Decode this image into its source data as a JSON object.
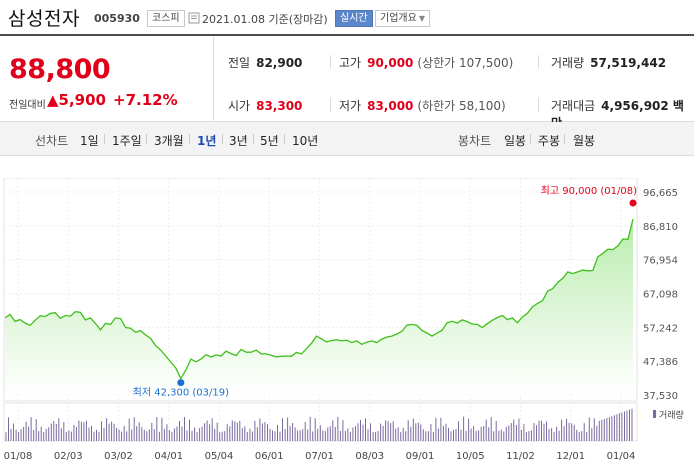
{
  "header": {
    "name": "삼성전자",
    "code": "005930",
    "market": "코스피",
    "date": "2021.01.08 기준(장마감)",
    "realtime": "실시간",
    "company": "기업개요"
  },
  "quote": {
    "price": "88,800",
    "change_label": "전일대비",
    "change": "5,900",
    "change_pct": "+7.12%",
    "prev_close_label": "전일",
    "prev_close": "82,900",
    "high_label": "고가",
    "high": "90,000",
    "upper_limit": "(상한가 107,500)",
    "volume_label": "거래량",
    "volume": "57,519,442",
    "open_label": "시가",
    "open": "83,300",
    "low_label": "저가",
    "low": "83,000",
    "lower_limit": "(하한가 58,100)",
    "amount_label": "거래대금",
    "amount": "4,956,902 백만"
  },
  "period_bar": {
    "line_label": "선차트",
    "periods": [
      "1일",
      "1주일",
      "3개월",
      "1년",
      "3년",
      "5년",
      "10년"
    ],
    "active": "1년",
    "candle_label": "봉차트",
    "candles": [
      "일봉",
      "주봉",
      "월봉"
    ]
  },
  "chart_data": {
    "type": "area",
    "y_ticks": [
      "96,665",
      "86,810",
      "76,954",
      "67,098",
      "57,242",
      "47,386",
      "37,530"
    ],
    "ylim": [
      37530,
      96665
    ],
    "x_ticks": [
      "01/08",
      "02/03",
      "03/02",
      "04/01",
      "05/04",
      "06/01",
      "07/01",
      "08/03",
      "09/01",
      "10/05",
      "11/02",
      "12/01",
      "01/04"
    ],
    "high_annotation": "최고 90,000 (01/08)",
    "low_annotation": "최저 42,300 (03/19)",
    "volume_label": "거래량",
    "colors": {
      "line": "#3fbf1a",
      "fill_top": "#b9ecad",
      "fill_bottom": "#ffffff",
      "volume": "#7a6aa0",
      "high": "#e0001a",
      "low": "#1b6fd1"
    },
    "price_series": [
      60000,
      61000,
      59000,
      59500,
      58500,
      57800,
      59300,
      60600,
      60400,
      61300,
      61500,
      59900,
      60700,
      60500,
      61800,
      61600,
      59400,
      60000,
      58400,
      56500,
      58400,
      58100,
      60000,
      59800,
      57200,
      57000,
      55800,
      56300,
      55000,
      54000,
      51900,
      50600,
      48900,
      47100,
      45400,
      42300,
      44800,
      48000,
      47200,
      48000,
      49300,
      48600,
      49200,
      48900,
      50300,
      49600,
      49000,
      50800,
      50000,
      50000,
      50600,
      49500,
      49500,
      49100,
      48600,
      48800,
      48900,
      48800,
      49900,
      49500,
      51000,
      52600,
      54700,
      53900,
      53000,
      53400,
      53600,
      53300,
      53500,
      52800,
      53300,
      52300,
      52900,
      53300,
      52800,
      53800,
      54400,
      54700,
      55300,
      56100,
      57900,
      58100,
      57800,
      56300,
      55600,
      54700,
      55600,
      56400,
      58600,
      59000,
      58500,
      59400,
      58900,
      58200,
      58100,
      57200,
      58300,
      59300,
      60100,
      60700,
      59500,
      60000,
      58600,
      60300,
      61400,
      63200,
      64200,
      65000,
      67800,
      68500,
      70300,
      71500,
      73400,
      72900,
      73400,
      73900,
      73700,
      73800,
      77800,
      78800,
      80000,
      79900,
      81000,
      83000,
      82900,
      88800
    ]
  }
}
